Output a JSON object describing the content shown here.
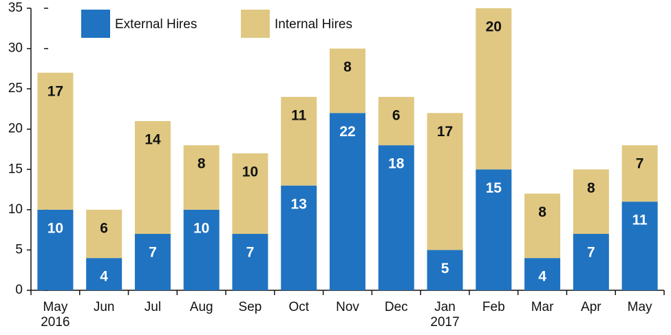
{
  "chart_data": {
    "type": "stacked_bar",
    "categories": [
      "May 2016",
      "Jun",
      "Jul",
      "Aug",
      "Sep",
      "Oct",
      "Nov",
      "Dec",
      "Jan 2017",
      "Feb",
      "Mar",
      "Apr",
      "May"
    ],
    "series": [
      {
        "name": "External Hires",
        "color": "#1f73c1",
        "label_color": "#ffffff",
        "values": [
          10,
          4,
          7,
          10,
          7,
          13,
          22,
          18,
          5,
          15,
          4,
          7,
          11
        ]
      },
      {
        "name": "Internal Hires",
        "color": "#e0c882",
        "label_color": "#111111",
        "values": [
          17,
          6,
          14,
          8,
          10,
          11,
          8,
          6,
          17,
          20,
          8,
          8,
          7
        ]
      }
    ],
    "ylim": [
      0,
      35
    ],
    "yticks": [
      0,
      5,
      10,
      15,
      20,
      25,
      30,
      35
    ],
    "grid": false
  }
}
